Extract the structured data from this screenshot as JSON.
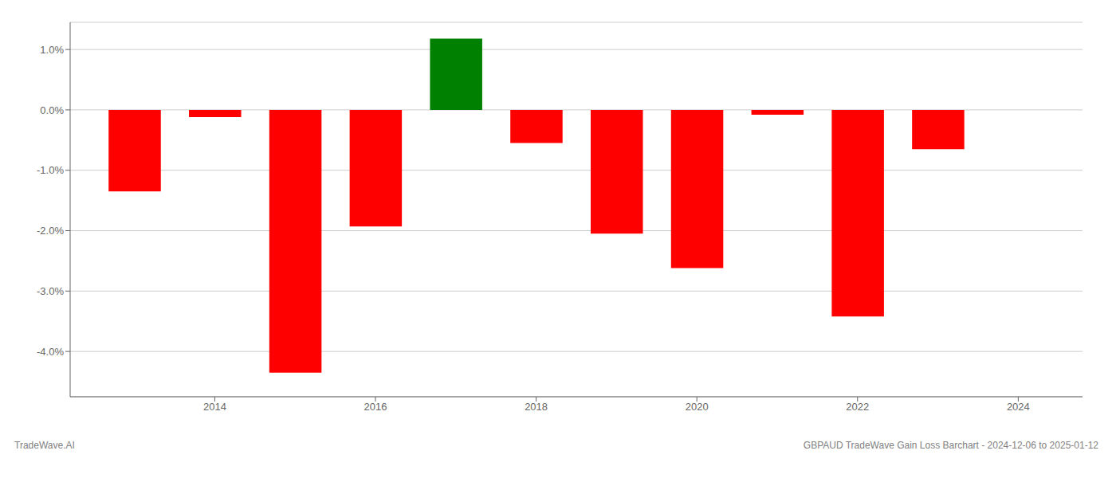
{
  "chart_data": {
    "type": "bar",
    "x": [
      2013,
      2014,
      2015,
      2016,
      2017,
      2018,
      2019,
      2020,
      2021,
      2022,
      2023
    ],
    "values": [
      -1.35,
      -0.12,
      -4.35,
      -1.93,
      1.18,
      -0.55,
      -2.05,
      -2.62,
      -0.08,
      -3.42,
      -0.65
    ],
    "colors": [
      "#ff0000",
      "#ff0000",
      "#ff0000",
      "#ff0000",
      "#008000",
      "#ff0000",
      "#ff0000",
      "#ff0000",
      "#ff0000",
      "#ff0000",
      "#ff0000"
    ],
    "xlim": [
      2012.2,
      2024.8
    ],
    "xticks": [
      2014,
      2016,
      2018,
      2020,
      2022,
      2024
    ],
    "ylim": [
      -4.75,
      1.45
    ],
    "yticks": [
      {
        "value": 1.0,
        "label": "1.0%"
      },
      {
        "value": 0.0,
        "label": "0.0%"
      },
      {
        "value": -1.0,
        "label": "-1.0%"
      },
      {
        "value": -2.0,
        "label": "-2.0%"
      },
      {
        "value": -3.0,
        "label": "-3.0%"
      },
      {
        "value": -4.0,
        "label": "-4.0%"
      }
    ],
    "grid": true,
    "annotations": [
      "TradeWave.AI",
      "GBPAUD TradeWave Gain Loss Barchart - 2024-12-06 to 2025-01-12"
    ]
  }
}
